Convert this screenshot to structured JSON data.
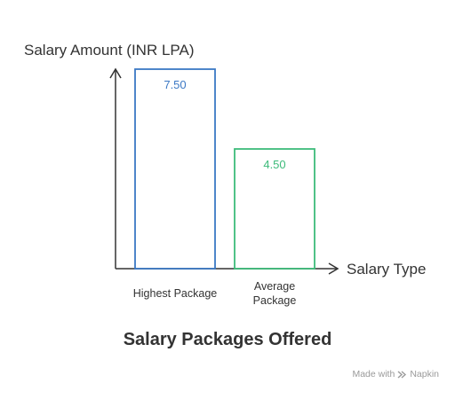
{
  "chart_data": {
    "type": "bar",
    "title": "Salary Packages Offered",
    "xlabel": "Salary Type",
    "ylabel": "Salary Amount (INR LPA)",
    "categories": [
      "Highest Package",
      "Average Package"
    ],
    "values": [
      7.5,
      4.5
    ],
    "value_labels": [
      "7.50",
      "4.50"
    ],
    "ylim": [
      0,
      7.5
    ],
    "grid": false,
    "colors": [
      "#3b78c4",
      "#3dbb7a"
    ]
  },
  "footer": {
    "made_with": "Made with",
    "brand": "Napkin",
    "brand_icon": "napkin-logo-icon"
  }
}
